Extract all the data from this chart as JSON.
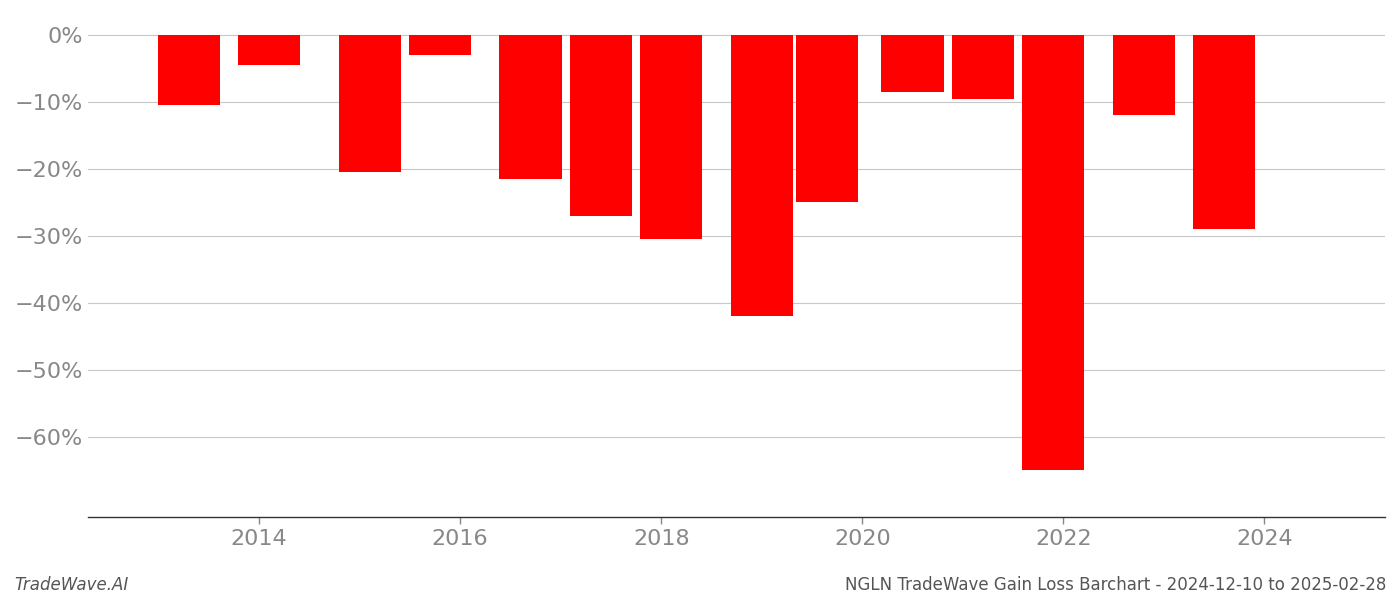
{
  "years": [
    2013.3,
    2014.1,
    2015.1,
    2015.8,
    2016.7,
    2017.4,
    2018.1,
    2019.0,
    2019.65,
    2020.5,
    2021.2,
    2021.9,
    2022.8,
    2023.6
  ],
  "values": [
    -10.5,
    -4.5,
    -20.5,
    -3.0,
    -21.5,
    -27.0,
    -30.5,
    -42.0,
    -25.0,
    -8.5,
    -9.5,
    -65.0,
    -12.0,
    -29.0
  ],
  "bar_color": "#ff0000",
  "background_color": "#ffffff",
  "grid_color": "#c8c8c8",
  "tick_color": "#888888",
  "ylabel_values": [
    0,
    -10,
    -20,
    -30,
    -40,
    -50,
    -60
  ],
  "xlim": [
    2012.3,
    2025.2
  ],
  "ylim": [
    -72,
    3
  ],
  "xticks": [
    2014,
    2016,
    2018,
    2020,
    2022,
    2024
  ],
  "footer_left": "TradeWave.AI",
  "footer_right": "NGLN TradeWave Gain Loss Barchart - 2024-12-10 to 2025-02-28",
  "bar_width": 0.62
}
